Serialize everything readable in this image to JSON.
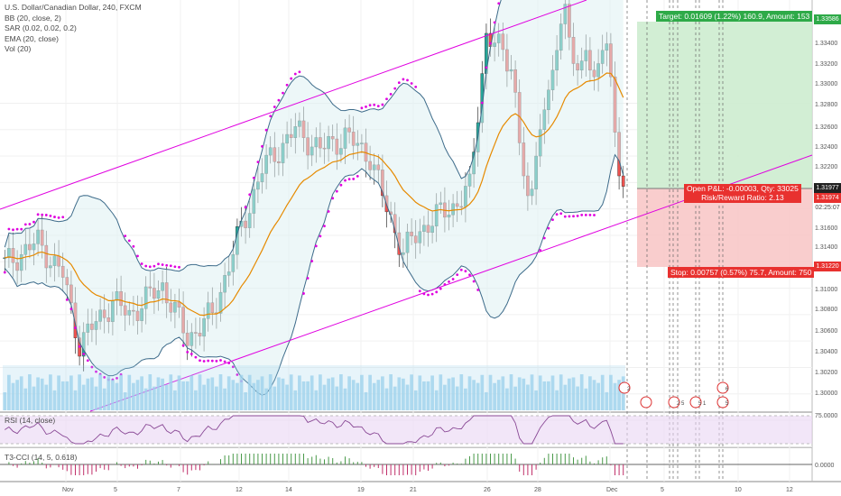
{
  "legend": {
    "title": "U.S. Dollar/Canadian Dollar, 240, FXCM",
    "bb": "BB (20, close, 2)",
    "sar": "SAR (0.02, 0.02, 0.2)",
    "ema": "EMA (20, close)",
    "vol": "Vol (20)"
  },
  "rsi_label": "RSI (14, close)",
  "cci_label": "T3-CCI (14, 5, 0.618)",
  "price_axis": [
    "1.33586",
    "1.33400",
    "1.33200",
    "1.33000",
    "1.32800",
    "1.32600",
    "1.32400",
    "1.32200",
    "1.31977",
    "1.31974",
    "02:25:07",
    "1.31600",
    "1.31400",
    "1.31220",
    "1.31000",
    "1.30800",
    "1.30600",
    "1.30400",
    "1.30200",
    "1.30000"
  ],
  "rsi_axis": "75.0000",
  "cci_axis": "0.0000",
  "time_axis": [
    "Nov",
    "5",
    "7",
    "12",
    "14",
    "19",
    "21",
    "26",
    "28",
    "Dec",
    "5",
    "10",
    "12"
  ],
  "position": {
    "target": "Target: 0.01609 (1.22%) 160.9, Amount: 153",
    "open_pl": "Open P&L: -0.00003, Qty: 33025",
    "risk_reward": "Risk/Reward Ratio: 2.13",
    "stop": "Stop: 0.00757 (0.57%) 75.7, Amount: 750",
    "target_price": "1.33586",
    "entry_price": "1.31977",
    "current_price": "1.31974",
    "countdown": "02:25:07",
    "stop_price": "1.31220"
  },
  "colors": {
    "up": "#26a69a",
    "down": "#ef5350",
    "bb": "#3d6b8a",
    "ema": "#e68a00",
    "sar": "#e000e0",
    "channel": "#e000e0",
    "target_zone": "#cdeccf",
    "stop_zone": "#f8c8c8",
    "rsi_band": "#ead6f3",
    "volume": "#9fd2ec"
  },
  "events": [
    {
      "label": "2"
    },
    {
      "label": ""
    },
    {
      "label": "2 5"
    },
    {
      "label": "5 1"
    },
    {
      "label": "6"
    },
    {
      "label": "5"
    }
  ]
}
